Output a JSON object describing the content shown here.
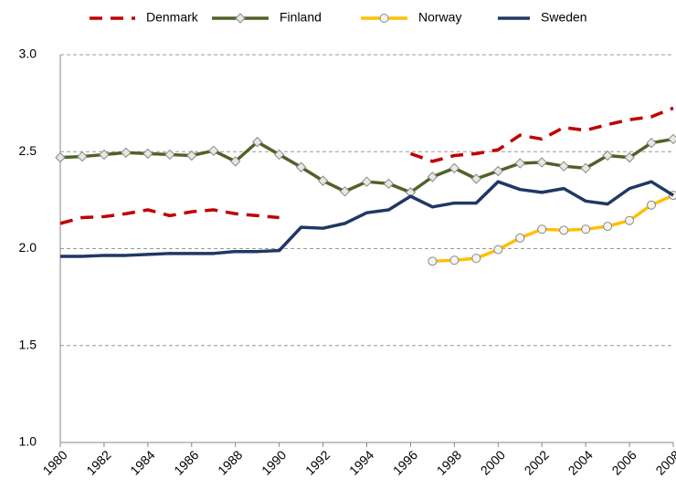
{
  "chart_data": {
    "type": "line",
    "x": [
      1980,
      1981,
      1982,
      1983,
      1984,
      1985,
      1986,
      1987,
      1988,
      1989,
      1990,
      1991,
      1992,
      1993,
      1994,
      1995,
      1996,
      1997,
      1998,
      1999,
      2000,
      2001,
      2002,
      2003,
      2004,
      2005,
      2006,
      2007,
      2008
    ],
    "series": [
      {
        "name": "Denmark",
        "color": "#c00000",
        "dashed": true,
        "marker": null,
        "values": [
          2.13,
          2.16,
          2.165,
          2.18,
          2.2,
          2.17,
          2.19,
          2.2,
          2.18,
          2.17,
          2.16,
          null,
          null,
          null,
          null,
          null,
          2.49,
          2.45,
          2.48,
          2.49,
          2.51,
          2.585,
          2.565,
          2.625,
          2.61,
          2.64,
          2.665,
          2.68,
          2.725
        ]
      },
      {
        "name": "Finland",
        "color": "#4f6228",
        "dashed": false,
        "marker": "diamond",
        "values": [
          2.47,
          2.475,
          2.485,
          2.495,
          2.49,
          2.485,
          2.48,
          2.505,
          2.45,
          2.55,
          2.485,
          2.42,
          2.35,
          2.295,
          2.345,
          2.335,
          2.29,
          2.37,
          2.415,
          2.36,
          2.4,
          2.44,
          2.445,
          2.425,
          2.415,
          2.48,
          2.47,
          2.545,
          2.565
        ]
      },
      {
        "name": "Norway",
        "color": "#ffc000",
        "dashed": false,
        "marker": "circle",
        "values": [
          null,
          null,
          null,
          null,
          null,
          null,
          null,
          null,
          null,
          null,
          null,
          null,
          null,
          null,
          null,
          null,
          null,
          1.935,
          1.94,
          1.95,
          1.995,
          2.055,
          2.1,
          2.095,
          2.1,
          2.115,
          2.145,
          2.225,
          2.275
        ]
      },
      {
        "name": "Sweden",
        "color": "#1f3864",
        "dashed": false,
        "marker": null,
        "values": [
          1.96,
          1.96,
          1.965,
          1.965,
          1.97,
          1.975,
          1.975,
          1.975,
          1.985,
          1.985,
          1.99,
          2.11,
          2.105,
          2.13,
          2.185,
          2.2,
          2.27,
          2.215,
          2.235,
          2.235,
          2.345,
          2.305,
          2.29,
          2.31,
          2.245,
          2.23,
          2.31,
          2.345,
          2.275
        ]
      }
    ],
    "xlim": [
      1980,
      2008
    ],
    "xticks": [
      1980,
      1982,
      1984,
      1986,
      1988,
      1990,
      1992,
      1994,
      1996,
      1998,
      2000,
      2002,
      2004,
      2006,
      2008
    ],
    "ylim": [
      1.0,
      3.0
    ],
    "yticks": [
      {
        "value": 1.0,
        "label": "1.0"
      },
      1.5,
      {
        "value": 2.0,
        "label": "2.0"
      },
      2.5,
      {
        "value": 3.0,
        "label": "3.0"
      }
    ],
    "grid": true,
    "legend": "top"
  }
}
